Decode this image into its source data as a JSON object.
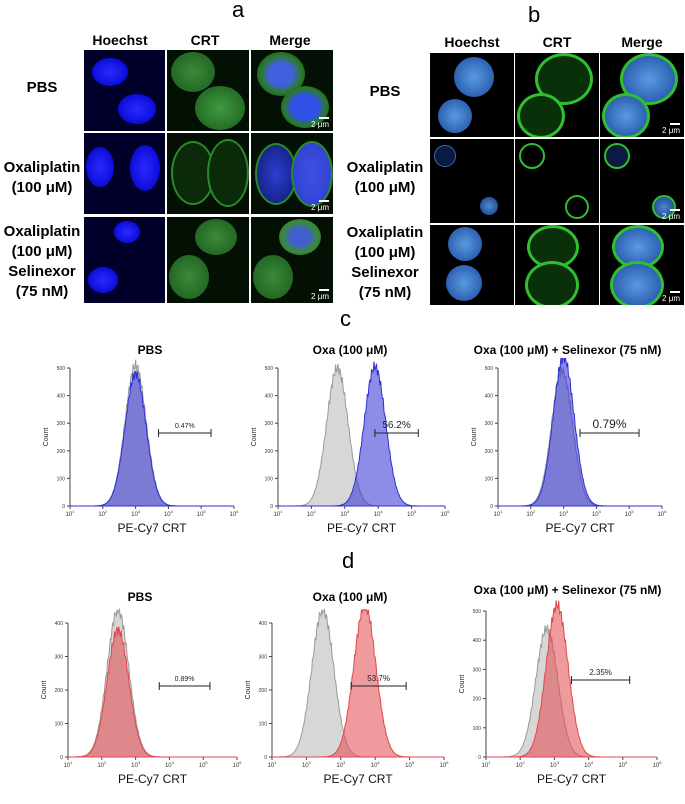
{
  "panel_a": {
    "letter": "a",
    "columns": [
      "Hoechst",
      "CRT",
      "Merge"
    ],
    "rows": [
      {
        "lines": [
          "PBS"
        ]
      },
      {
        "lines": [
          "Oxaliplatin",
          "(100 μM)"
        ]
      },
      {
        "lines": [
          "Oxaliplatin",
          "(100 μM)",
          "Selinexor",
          "(75 nM)"
        ]
      }
    ],
    "scale_bar": "2 μm"
  },
  "panel_b": {
    "letter": "b",
    "columns": [
      "Hoechst",
      "CRT",
      "Merge"
    ],
    "rows": [
      {
        "lines": [
          "PBS"
        ]
      },
      {
        "lines": [
          "Oxaliplatin",
          "(100 μM)"
        ]
      },
      {
        "lines": [
          "Oxaliplatin",
          "(100 μM)",
          "Selinexor",
          "(75 nM)"
        ]
      }
    ],
    "scale_bar": "2 μm"
  },
  "panel_c": {
    "letter": "c",
    "color": "#2f2fd6",
    "plots": [
      {
        "title": "PBS",
        "gate": "0.47%"
      },
      {
        "title": "Oxa (100 μM)",
        "gate": "56.2%"
      },
      {
        "title": "Oxa (100 μM) + Selinexor (75 nM)",
        "gate": "0.79%"
      }
    ],
    "xlabel": "PE-Cy7 CRT",
    "ylabel": "Count"
  },
  "panel_d": {
    "letter": "d",
    "color": "#e2474c",
    "plots": [
      {
        "title": "PBS",
        "gate": "0.89%"
      },
      {
        "title": "Oxa (100 μM)",
        "gate": "53.7%"
      },
      {
        "title": "Oxa (100 μM) + Selinexor (75 nM)",
        "gate": "2.35%"
      }
    ],
    "xlabel": "PE-Cy7 CRT",
    "ylabel": "Count"
  },
  "chart_data": [
    {
      "type": "area",
      "title": "PBS",
      "xlabel": "PE-Cy7 CRT",
      "ylabel": "Count",
      "ylim": [
        0,
        500
      ],
      "xscale": "log",
      "xlim": [
        10,
        1000000
      ],
      "series": [
        {
          "name": "",
          "peak_x": 1000,
          "peak_y": 510
        },
        {
          "name": "",
          "peak_x": 1000,
          "peak_y": 480
        }
      ],
      "gate_percent": 0.47
    },
    {
      "type": "area",
      "title": "Oxa (100 μM)",
      "xlabel": "PE-Cy7 CRT",
      "ylabel": "Count",
      "ylim": [
        0,
        500
      ],
      "xscale": "log",
      "xlim": [
        10,
        1000000
      ],
      "series": [
        {
          "name": "",
          "peak_x": 600,
          "peak_y": 500
        },
        {
          "name": "",
          "peak_x": 8000,
          "peak_y": 505
        }
      ],
      "gate_percent": 56.2
    },
    {
      "type": "area",
      "title": "Oxa (100 μM) + Selinexor (75 nM)",
      "xlabel": "PE-Cy7 CRT",
      "ylabel": "Count",
      "ylim": [
        0,
        500
      ],
      "xscale": "log",
      "xlim": [
        10,
        1000000
      ],
      "series": [
        {
          "name": "",
          "peak_x": 900,
          "peak_y": 490
        },
        {
          "name": "",
          "peak_x": 1000,
          "peak_y": 540
        }
      ],
      "gate_percent": 0.79
    },
    {
      "type": "area",
      "title": "PBS",
      "xlabel": "PE-Cy7 CRT",
      "ylabel": "Count",
      "ylim": [
        0,
        400
      ],
      "xscale": "log",
      "xlim": [
        10,
        1000000
      ],
      "series": [
        {
          "name": "",
          "peak_x": 300,
          "peak_y": 440
        },
        {
          "name": "",
          "peak_x": 300,
          "peak_y": 380
        }
      ],
      "gate_percent": 0.89
    },
    {
      "type": "area",
      "title": "Oxa (100 μM)",
      "xlabel": "PE-Cy7 CRT",
      "ylabel": "Count",
      "ylim": [
        0,
        400
      ],
      "xscale": "log",
      "xlim": [
        10,
        1000000
      ],
      "series": [
        {
          "name": "",
          "peak_x": 300,
          "peak_y": 440
        },
        {
          "name": "",
          "peak_x": 5000,
          "peak_y": 455
        }
      ],
      "gate_percent": 53.7
    },
    {
      "type": "area",
      "title": "Oxa (100 μM) + Selinexor (75 nM)",
      "xlabel": "PE-Cy7 CRT",
      "ylabel": "Count",
      "ylim": [
        0,
        500
      ],
      "xscale": "log",
      "xlim": [
        10,
        1000000
      ],
      "series": [
        {
          "name": "",
          "peak_x": 600,
          "peak_y": 440
        },
        {
          "name": "",
          "peak_x": 1200,
          "peak_y": 520
        }
      ],
      "gate_percent": 2.35
    }
  ]
}
